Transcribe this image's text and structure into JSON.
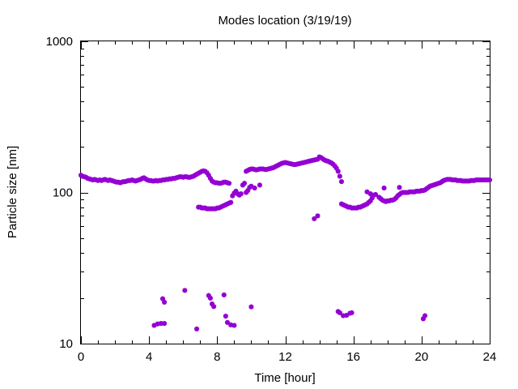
{
  "chart_data": {
    "type": "scatter",
    "title": "Modes location (3/19/19)",
    "xlabel": "Time [hour]",
    "ylabel": "Particle size [nm]",
    "xlim": [
      0,
      24
    ],
    "ylim": [
      10,
      1000
    ],
    "yscale": "log",
    "grid": false,
    "legend": "none",
    "marker": "star",
    "color": "#9400d3",
    "x_ticks": [
      0,
      4,
      8,
      12,
      16,
      20,
      24
    ],
    "x_tick_labels": [
      "0",
      "4",
      "8",
      "12",
      "16",
      "20",
      "24"
    ],
    "y_ticks": [
      10,
      100,
      1000
    ],
    "y_tick_labels": [
      "10",
      "100",
      "1000"
    ],
    "series": [
      {
        "values": [
          [
            0.0,
            130
          ],
          [
            0.1,
            128
          ],
          [
            0.2,
            127
          ],
          [
            0.3,
            126
          ],
          [
            0.4,
            124
          ],
          [
            0.5,
            123
          ],
          [
            0.6,
            122
          ],
          [
            0.7,
            121
          ],
          [
            0.8,
            122
          ],
          [
            0.9,
            121
          ],
          [
            1.0,
            120
          ],
          [
            1.1,
            121
          ],
          [
            1.2,
            120
          ],
          [
            1.3,
            121
          ],
          [
            1.4,
            122
          ],
          [
            1.5,
            121
          ],
          [
            1.6,
            120
          ],
          [
            1.7,
            121
          ],
          [
            1.8,
            120
          ],
          [
            1.9,
            119
          ],
          [
            2.0,
            118
          ],
          [
            2.1,
            117
          ],
          [
            2.2,
            117
          ],
          [
            2.3,
            116
          ],
          [
            2.4,
            117
          ],
          [
            2.5,
            118
          ],
          [
            2.6,
            118
          ],
          [
            2.7,
            119
          ],
          [
            2.8,
            120
          ],
          [
            2.9,
            120
          ],
          [
            3.0,
            121
          ],
          [
            3.1,
            120
          ],
          [
            3.2,
            119
          ],
          [
            3.3,
            120
          ],
          [
            3.4,
            121
          ],
          [
            3.5,
            122
          ],
          [
            3.6,
            124
          ],
          [
            3.7,
            125
          ],
          [
            3.8,
            123
          ],
          [
            3.9,
            121
          ],
          [
            4.0,
            120
          ],
          [
            4.1,
            120
          ],
          [
            4.2,
            119
          ],
          [
            4.3,
            119
          ],
          [
            4.4,
            120
          ],
          [
            4.5,
            119
          ],
          [
            4.6,
            120
          ],
          [
            4.7,
            120
          ],
          [
            4.8,
            121
          ],
          [
            4.9,
            121
          ],
          [
            5.0,
            122
          ],
          [
            5.1,
            122
          ],
          [
            5.2,
            123
          ],
          [
            5.3,
            123
          ],
          [
            5.4,
            124
          ],
          [
            5.5,
            124
          ],
          [
            5.6,
            125
          ],
          [
            5.7,
            126
          ],
          [
            5.8,
            127
          ],
          [
            5.9,
            127
          ],
          [
            6.0,
            126
          ],
          [
            6.1,
            127
          ],
          [
            6.2,
            127
          ],
          [
            6.3,
            126
          ],
          [
            6.4,
            126
          ],
          [
            6.5,
            127
          ],
          [
            6.6,
            128
          ],
          [
            6.7,
            130
          ],
          [
            6.8,
            132
          ],
          [
            6.9,
            134
          ],
          [
            7.0,
            136
          ],
          [
            7.1,
            138
          ],
          [
            7.2,
            139
          ],
          [
            7.3,
            138
          ],
          [
            7.4,
            135
          ],
          [
            7.5,
            130
          ],
          [
            7.6,
            124
          ],
          [
            7.7,
            119
          ],
          [
            7.8,
            117
          ],
          [
            7.9,
            116
          ],
          [
            8.0,
            116
          ],
          [
            8.1,
            115
          ],
          [
            8.2,
            115
          ],
          [
            8.3,
            116
          ],
          [
            8.4,
            117
          ],
          [
            8.5,
            117
          ],
          [
            8.6,
            116
          ],
          [
            8.7,
            115
          ],
          [
            6.9,
            80
          ],
          [
            7.0,
            80
          ],
          [
            7.1,
            79
          ],
          [
            7.2,
            79
          ],
          [
            7.3,
            79
          ],
          [
            7.4,
            78
          ],
          [
            7.5,
            78
          ],
          [
            7.6,
            78
          ],
          [
            7.7,
            78
          ],
          [
            7.8,
            78
          ],
          [
            7.9,
            78
          ],
          [
            8.0,
            79
          ],
          [
            8.1,
            79
          ],
          [
            8.2,
            80
          ],
          [
            8.3,
            81
          ],
          [
            8.4,
            82
          ],
          [
            8.5,
            83
          ],
          [
            8.6,
            84
          ],
          [
            8.7,
            85
          ],
          [
            8.8,
            86
          ],
          [
            8.9,
            95
          ],
          [
            9.0,
            99
          ],
          [
            9.1,
            102
          ],
          [
            9.2,
            98
          ],
          [
            9.3,
            96
          ],
          [
            9.4,
            98
          ],
          [
            9.5,
            112
          ],
          [
            9.6,
            115
          ],
          [
            9.7,
            100
          ],
          [
            9.8,
            103
          ],
          [
            9.9,
            108
          ],
          [
            10.0,
            110
          ],
          [
            10.2,
            107
          ],
          [
            10.5,
            112
          ],
          [
            9.7,
            138
          ],
          [
            9.8,
            140
          ],
          [
            9.9,
            142
          ],
          [
            10.0,
            143
          ],
          [
            10.1,
            143
          ],
          [
            10.2,
            142
          ],
          [
            10.3,
            141
          ],
          [
            10.4,
            142
          ],
          [
            10.5,
            143
          ],
          [
            10.6,
            143
          ],
          [
            10.7,
            143
          ],
          [
            10.8,
            142
          ],
          [
            10.9,
            142
          ],
          [
            11.0,
            143
          ],
          [
            11.1,
            144
          ],
          [
            11.2,
            145
          ],
          [
            11.3,
            146
          ],
          [
            11.4,
            148
          ],
          [
            11.5,
            150
          ],
          [
            11.6,
            152
          ],
          [
            11.7,
            154
          ],
          [
            11.8,
            156
          ],
          [
            11.9,
            157
          ],
          [
            12.0,
            158
          ],
          [
            12.1,
            157
          ],
          [
            12.2,
            156
          ],
          [
            12.3,
            155
          ],
          [
            12.4,
            154
          ],
          [
            12.5,
            153
          ],
          [
            12.6,
            153
          ],
          [
            12.7,
            154
          ],
          [
            12.8,
            155
          ],
          [
            12.9,
            156
          ],
          [
            13.0,
            157
          ],
          [
            13.1,
            158
          ],
          [
            13.2,
            159
          ],
          [
            13.3,
            160
          ],
          [
            13.4,
            161
          ],
          [
            13.5,
            162
          ],
          [
            13.6,
            163
          ],
          [
            13.7,
            164
          ],
          [
            13.8,
            165
          ],
          [
            13.9,
            166
          ],
          [
            14.0,
            172
          ],
          [
            14.1,
            170
          ],
          [
            14.2,
            167
          ],
          [
            14.3,
            164
          ],
          [
            14.4,
            162
          ],
          [
            14.5,
            161
          ],
          [
            14.6,
            159
          ],
          [
            14.7,
            157
          ],
          [
            14.8,
            154
          ],
          [
            14.9,
            150
          ],
          [
            15.0,
            145
          ],
          [
            15.1,
            138
          ],
          [
            13.7,
            67
          ],
          [
            13.9,
            70
          ],
          [
            15.2,
            128
          ],
          [
            15.3,
            118
          ],
          [
            15.3,
            84
          ],
          [
            15.4,
            83
          ],
          [
            15.5,
            82
          ],
          [
            15.6,
            81
          ],
          [
            15.7,
            80
          ],
          [
            15.8,
            80
          ],
          [
            15.9,
            79
          ],
          [
            16.0,
            79
          ],
          [
            16.1,
            79
          ],
          [
            16.2,
            79
          ],
          [
            16.3,
            80
          ],
          [
            16.4,
            80
          ],
          [
            16.5,
            81
          ],
          [
            16.6,
            82
          ],
          [
            16.7,
            83
          ],
          [
            16.8,
            84
          ],
          [
            16.9,
            86
          ],
          [
            17.0,
            88
          ],
          [
            17.1,
            92
          ],
          [
            16.8,
            101
          ],
          [
            17.0,
            98
          ],
          [
            17.2,
            96
          ],
          [
            17.3,
            97
          ],
          [
            17.5,
            93
          ],
          [
            17.6,
            91
          ],
          [
            17.7,
            89
          ],
          [
            17.8,
            88
          ],
          [
            17.9,
            87
          ],
          [
            18.0,
            88
          ],
          [
            18.1,
            88
          ],
          [
            18.2,
            89
          ],
          [
            18.3,
            89
          ],
          [
            18.4,
            90
          ],
          [
            18.5,
            92
          ],
          [
            18.6,
            95
          ],
          [
            18.7,
            97
          ],
          [
            18.8,
            99
          ],
          [
            18.9,
            100
          ],
          [
            19.0,
            100
          ],
          [
            19.1,
            100
          ],
          [
            19.2,
            100
          ],
          [
            19.3,
            101
          ],
          [
            19.4,
            101
          ],
          [
            19.5,
            101
          ],
          [
            19.6,
            101
          ],
          [
            19.7,
            102
          ],
          [
            19.8,
            102
          ],
          [
            19.9,
            102
          ],
          [
            20.0,
            103
          ],
          [
            20.1,
            103
          ],
          [
            20.2,
            104
          ],
          [
            20.3,
            106
          ],
          [
            20.4,
            108
          ],
          [
            20.5,
            110
          ],
          [
            20.6,
            111
          ],
          [
            20.7,
            112
          ],
          [
            20.8,
            113
          ],
          [
            20.9,
            114
          ],
          [
            21.0,
            115
          ],
          [
            21.1,
            116
          ],
          [
            21.2,
            118
          ],
          [
            21.3,
            120
          ],
          [
            21.4,
            121
          ],
          [
            21.5,
            122
          ],
          [
            21.6,
            122
          ],
          [
            21.7,
            122
          ],
          [
            21.8,
            121
          ],
          [
            21.9,
            121
          ],
          [
            22.0,
            121
          ],
          [
            22.1,
            120
          ],
          [
            22.2,
            120
          ],
          [
            22.3,
            120
          ],
          [
            22.4,
            119
          ],
          [
            22.5,
            119
          ],
          [
            22.6,
            119
          ],
          [
            22.7,
            119
          ],
          [
            22.8,
            119
          ],
          [
            22.9,
            120
          ],
          [
            23.0,
            120
          ],
          [
            23.1,
            120
          ],
          [
            23.2,
            121
          ],
          [
            23.3,
            121
          ],
          [
            23.4,
            121
          ],
          [
            23.5,
            121
          ],
          [
            23.6,
            121
          ],
          [
            23.7,
            121
          ],
          [
            23.8,
            121
          ],
          [
            23.9,
            121
          ],
          [
            24.0,
            121
          ],
          [
            17.8,
            107
          ],
          [
            18.7,
            108
          ],
          [
            4.3,
            13.2
          ],
          [
            4.5,
            13.5
          ],
          [
            4.7,
            13.6
          ],
          [
            4.9,
            13.6
          ],
          [
            4.8,
            19.8
          ],
          [
            4.9,
            18.8
          ],
          [
            6.1,
            22.5
          ],
          [
            6.8,
            12.5
          ],
          [
            7.5,
            20.8
          ],
          [
            7.6,
            20.0
          ],
          [
            7.7,
            18.3
          ],
          [
            7.8,
            17.6
          ],
          [
            8.4,
            21.0
          ],
          [
            8.5,
            15.2
          ],
          [
            8.6,
            13.8
          ],
          [
            8.8,
            13.3
          ],
          [
            9.0,
            13.2
          ],
          [
            10.0,
            17.5
          ],
          [
            15.1,
            16.3
          ],
          [
            15.2,
            16.0
          ],
          [
            15.4,
            15.3
          ],
          [
            15.6,
            15.4
          ],
          [
            15.8,
            15.9
          ],
          [
            15.9,
            16.0
          ],
          [
            20.1,
            14.6
          ],
          [
            20.2,
            15.3
          ]
        ]
      }
    ]
  }
}
